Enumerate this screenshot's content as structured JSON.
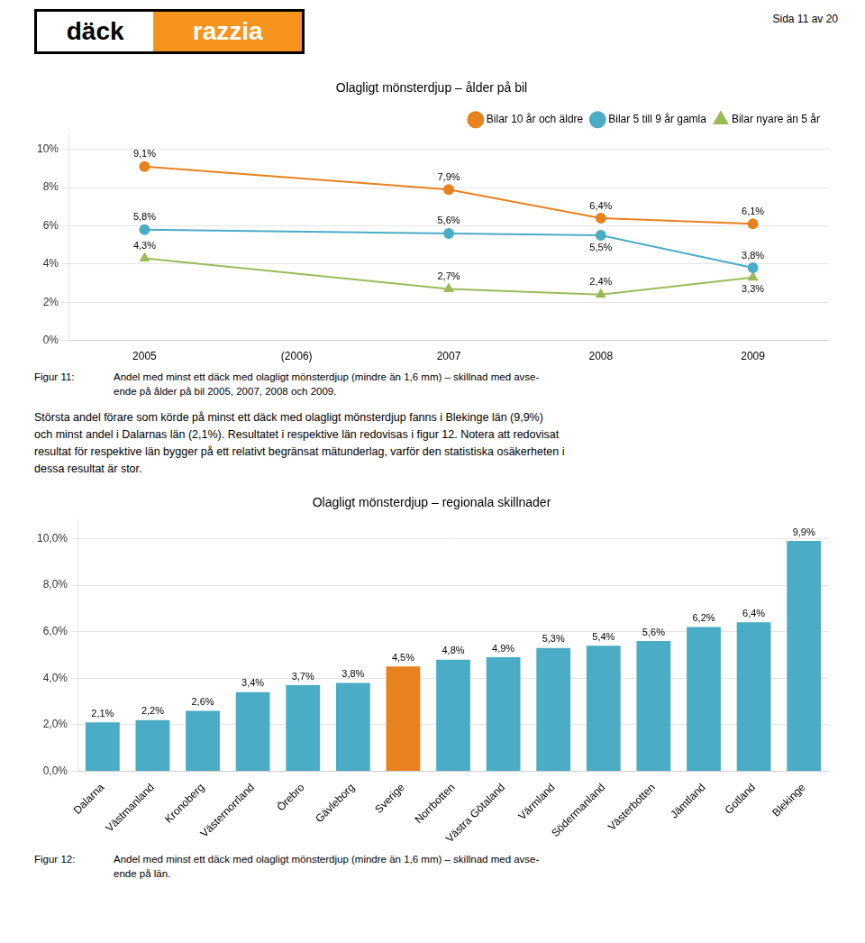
{
  "header": "Sida 11 av 20",
  "logo": {
    "texts": [
      "däck",
      "razzia"
    ],
    "color": "#F7941D"
  },
  "body_text": [
    "Största andel förare som körde på minst ett däck med olagligt mönsterdjup fanns i Blekinge län (9,9%)",
    "och minst andel i Dalarnas län (2,1%). Resultatet i respektive län redovisas i figur 12. Notera att redovisat",
    "resultat för respektive län bygger på ett relativt begränsat mätunderlag, varför den statistiska osäkerheten i",
    "dessa resultat är stor."
  ],
  "chart_data": [
    {
      "type": "line",
      "title": "Olagligt mönsterdjup – ålder på bil",
      "categories": [
        "2005",
        "(2006)",
        "2007",
        "2008",
        "2009"
      ],
      "series": [
        {
          "name": "Bilar 10 år och äldre",
          "color": "#E8821E",
          "marker": "circle",
          "values": [
            9.1,
            null,
            7.9,
            6.4,
            6.1
          ],
          "value_labels": [
            "9,1%",
            null,
            "7,9%",
            "6,4%",
            "6,1%"
          ]
        },
        {
          "name": "Bilar 5 till 9 år gamla",
          "color": "#4BACC6",
          "marker": "circle",
          "values": [
            5.8,
            null,
            5.6,
            5.5,
            3.8
          ],
          "value_labels": [
            "5,8%",
            null,
            "5,6%",
            "5,5%",
            "3,8%"
          ]
        },
        {
          "name": "Bilar nyare än 5 år",
          "color": "#9BBB59",
          "marker": "triangle",
          "values": [
            4.3,
            null,
            2.7,
            2.4,
            3.3
          ],
          "value_labels": [
            "4,3%",
            null,
            "2,7%",
            "2,4%",
            "3,3%"
          ]
        }
      ],
      "ylim": [
        0,
        10.8
      ],
      "yticks": [
        {
          "value": 0,
          "label": "0%"
        },
        {
          "value": 2,
          "label": "2%"
        },
        {
          "value": 4,
          "label": "4%"
        },
        {
          "value": 6,
          "label": "6%"
        },
        {
          "value": 8,
          "label": "8%"
        },
        {
          "value": 10,
          "label": "10%"
        }
      ],
      "grid": true,
      "legend": "upper right",
      "data_labels": true,
      "caption": {
        "label": "Figur 11:",
        "lines": [
          "Andel med minst ett däck med olagligt mönsterdjup (mindre än 1,6 mm) – skillnad med avse-",
          "ende på ålder på bil 2005, 2007, 2008 och 2009."
        ]
      }
    },
    {
      "type": "bar",
      "title": "Olagligt mönsterdjup – regionala skillnader",
      "categories": [
        "Dalarna",
        "Västmanland",
        "Kronoberg",
        "Västernorrland",
        "Örebro",
        "Gävleborg",
        "Sverige",
        "Norrbotten",
        "Västra Götaland",
        "Värmland",
        "Södermanland",
        "Västerbotten",
        "Jämtland",
        "Gotland",
        "Blekinge"
      ],
      "values": [
        2.1,
        2.2,
        2.6,
        3.4,
        3.7,
        3.8,
        4.5,
        4.8,
        4.9,
        5.3,
        5.4,
        5.6,
        6.2,
        6.4,
        9.9
      ],
      "value_labels": [
        "2,1%",
        "2,2%",
        "2,6%",
        "3,4%",
        "3,7%",
        "3,8%",
        "4,5%",
        "4,8%",
        "4,9%",
        "5,3%",
        "5,4%",
        "5,6%",
        "6,2%",
        "6,4%",
        "9,9%"
      ],
      "colors": [
        "#4BACC6",
        "#4BACC6",
        "#4BACC6",
        "#4BACC6",
        "#4BACC6",
        "#4BACC6",
        "#E8821E",
        "#4BACC6",
        "#4BACC6",
        "#4BACC6",
        "#4BACC6",
        "#4BACC6",
        "#4BACC6",
        "#4BACC6",
        "#4BACC6"
      ],
      "ylim": [
        0,
        10.8
      ],
      "yticks": [
        {
          "value": 0,
          "label": "0,0%"
        },
        {
          "value": 2,
          "label": "2,0%"
        },
        {
          "value": 4,
          "label": "4,0%"
        },
        {
          "value": 6,
          "label": "6,0%"
        },
        {
          "value": 8,
          "label": "8,0%"
        },
        {
          "value": 10,
          "label": "10,0%"
        }
      ],
      "grid": true,
      "data_labels": true,
      "caption": {
        "label": "Figur 12:",
        "lines": [
          "Andel med minst ett däck med olagligt mönsterdjup (mindre än 1,6 mm) – skillnad med avse-",
          "ende på län."
        ]
      }
    }
  ]
}
